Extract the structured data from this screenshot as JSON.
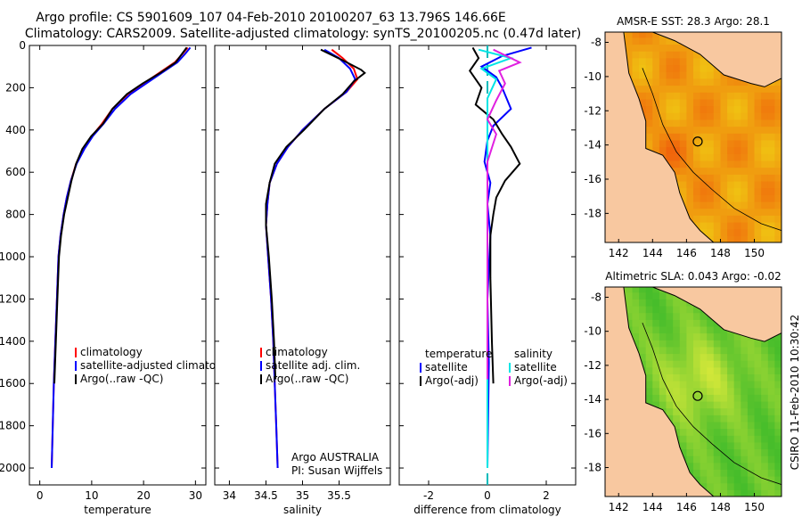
{
  "header": {
    "line1": "Argo profile: CS 5901609_107 04-Feb-2010 20100207_63 13.796S 146.66E",
    "line2": "Climatology: CARS2009. Satellite-adjusted climatology: synTS_20100205.nc (0.47d later)"
  },
  "side_label": "CSIRO 11-Feb-2010 10:30:42",
  "colors": {
    "climatology": "#ff0000",
    "satellite": "#0000ff",
    "argo": "#000000",
    "sal_satellite": "#00e5e5",
    "sal_argo": "#e020e0",
    "land": "#f8c8a0"
  },
  "chart_data": [
    {
      "type": "line",
      "xlabel": "temperature",
      "xticks": [
        0,
        10,
        20,
        30
      ],
      "xlim": [
        -2,
        32
      ],
      "ylim": [
        0,
        2080
      ],
      "yticks": [
        0,
        200,
        400,
        600,
        800,
        1000,
        1200,
        1400,
        1600,
        1800,
        2000
      ],
      "legend": [
        "climatology",
        "satellite-adjusted climatology",
        "Argo(..raw -QC)"
      ],
      "series": [
        {
          "name": "climatology",
          "color": "#ff0000",
          "points": [
            [
              28.5,
              10
            ],
            [
              27.5,
              40
            ],
            [
              26,
              80
            ],
            [
              23,
              130
            ],
            [
              20,
              180
            ],
            [
              17,
              230
            ],
            [
              14,
              300
            ],
            [
              12,
              370
            ],
            [
              10,
              430
            ],
            [
              8.5,
              490
            ],
            [
              7,
              560
            ],
            [
              6,
              640
            ],
            [
              5.2,
              720
            ],
            [
              4.6,
              800
            ],
            [
              4,
              900
            ],
            [
              3.6,
              1000
            ],
            [
              3.3,
              1200
            ],
            [
              3,
              1400
            ],
            [
              2.7,
              1600
            ],
            [
              2.5,
              1800
            ],
            [
              2.3,
              2000
            ]
          ]
        },
        {
          "name": "satellite-adjusted climatology",
          "color": "#0000ff",
          "points": [
            [
              29,
              10
            ],
            [
              28,
              40
            ],
            [
              26.5,
              80
            ],
            [
              23.5,
              130
            ],
            [
              20.5,
              180
            ],
            [
              17.5,
              230
            ],
            [
              14.5,
              300
            ],
            [
              12.3,
              370
            ],
            [
              10.2,
              430
            ],
            [
              8.6,
              490
            ],
            [
              7.1,
              560
            ],
            [
              6,
              640
            ],
            [
              5.2,
              720
            ],
            [
              4.6,
              800
            ],
            [
              4,
              900
            ],
            [
              3.6,
              1000
            ],
            [
              3.3,
              1200
            ],
            [
              3,
              1400
            ],
            [
              2.7,
              1600
            ],
            [
              2.5,
              1800
            ],
            [
              2.3,
              2000
            ]
          ]
        },
        {
          "name": "Argo(..raw -QC)",
          "color": "#000000",
          "points": [
            [
              28.3,
              10
            ],
            [
              27.4,
              40
            ],
            [
              26.2,
              80
            ],
            [
              23.2,
              130
            ],
            [
              19.8,
              180
            ],
            [
              16.8,
              230
            ],
            [
              14,
              300
            ],
            [
              12.2,
              370
            ],
            [
              9.9,
              430
            ],
            [
              8.2,
              490
            ],
            [
              7,
              560
            ],
            [
              6.1,
              640
            ],
            [
              5.4,
              720
            ],
            [
              4.7,
              800
            ],
            [
              4.1,
              900
            ],
            [
              3.7,
              1000
            ],
            [
              3.4,
              1200
            ],
            [
              3.1,
              1400
            ],
            [
              2.8,
              1600
            ]
          ]
        }
      ]
    },
    {
      "type": "line",
      "xlabel": "salinity",
      "xticks": [
        34,
        34.5,
        35,
        35.5
      ],
      "xlim": [
        33.8,
        36.2
      ],
      "ylim": [
        0,
        2080
      ],
      "legend": [
        "climatology",
        "satellite adj. clim.",
        "Argo(..raw -QC)"
      ],
      "annotation": [
        "Argo AUSTRALIA",
        "PI: Susan Wijffels"
      ],
      "series": [
        {
          "name": "climatology",
          "color": "#ff0000",
          "points": [
            [
              35.4,
              20
            ],
            [
              35.55,
              60
            ],
            [
              35.7,
              110
            ],
            [
              35.75,
              160
            ],
            [
              35.6,
              220
            ],
            [
              35.3,
              300
            ],
            [
              35,
              400
            ],
            [
              34.8,
              480
            ],
            [
              34.65,
              560
            ],
            [
              34.55,
              650
            ],
            [
              34.52,
              750
            ],
            [
              34.5,
              850
            ],
            [
              34.53,
              1000
            ],
            [
              34.57,
              1200
            ],
            [
              34.6,
              1400
            ],
            [
              34.62,
              1600
            ],
            [
              34.64,
              1800
            ],
            [
              34.66,
              2000
            ]
          ]
        },
        {
          "name": "satellite adj. clim.",
          "color": "#0000ff",
          "points": [
            [
              35.3,
              20
            ],
            [
              35.5,
              60
            ],
            [
              35.65,
              110
            ],
            [
              35.72,
              160
            ],
            [
              35.6,
              220
            ],
            [
              35.3,
              300
            ],
            [
              35,
              400
            ],
            [
              34.8,
              480
            ],
            [
              34.65,
              560
            ],
            [
              34.55,
              650
            ],
            [
              34.52,
              750
            ],
            [
              34.5,
              850
            ],
            [
              34.53,
              1000
            ],
            [
              34.57,
              1200
            ],
            [
              34.6,
              1400
            ],
            [
              34.62,
              1600
            ],
            [
              34.64,
              1800
            ],
            [
              34.66,
              2000
            ]
          ]
        },
        {
          "name": "Argo(..raw -QC)",
          "color": "#000000",
          "points": [
            [
              35.25,
              20
            ],
            [
              35.55,
              70
            ],
            [
              35.8,
              115
            ],
            [
              35.85,
              130
            ],
            [
              35.7,
              170
            ],
            [
              35.55,
              230
            ],
            [
              35.3,
              300
            ],
            [
              35.02,
              400
            ],
            [
              34.78,
              480
            ],
            [
              34.62,
              560
            ],
            [
              34.55,
              650
            ],
            [
              34.5,
              750
            ],
            [
              34.5,
              850
            ],
            [
              34.54,
              1000
            ],
            [
              34.58,
              1200
            ],
            [
              34.61,
              1400
            ],
            [
              34.63,
              1580
            ]
          ]
        }
      ]
    },
    {
      "type": "line",
      "xlabel": "difference from climatology",
      "xticks": [
        -2,
        0,
        2
      ],
      "xlim": [
        -3,
        3
      ],
      "ylim": [
        0,
        2080
      ],
      "legend_left": [
        "temperature",
        "satellite",
        "Argo(-adj)"
      ],
      "legend_right": [
        "salinity",
        "satellite",
        "Argo(-adj)"
      ],
      "series": [
        {
          "name": "temperature satellite",
          "color": "#0000ff",
          "points": [
            [
              1.5,
              10
            ],
            [
              0.5,
              50
            ],
            [
              -0.2,
              100
            ],
            [
              0.3,
              150
            ],
            [
              0.5,
              200
            ],
            [
              0.8,
              300
            ],
            [
              0.2,
              380
            ],
            [
              0,
              450
            ],
            [
              -0.1,
              550
            ],
            [
              0.1,
              650
            ],
            [
              0,
              750
            ],
            [
              0.1,
              900
            ],
            [
              0,
              1200
            ],
            [
              0.05,
              1500
            ],
            [
              0,
              2000
            ]
          ]
        },
        {
          "name": "temperature Argo(-adj)",
          "color": "#000000",
          "points": [
            [
              -0.5,
              10
            ],
            [
              -0.3,
              60
            ],
            [
              -0.6,
              120
            ],
            [
              -0.2,
              200
            ],
            [
              -0.4,
              280
            ],
            [
              0.2,
              350
            ],
            [
              0.5,
              420
            ],
            [
              0.8,
              480
            ],
            [
              1.1,
              560
            ],
            [
              0.6,
              640
            ],
            [
              0.3,
              720
            ],
            [
              0.2,
              800
            ],
            [
              0.1,
              900
            ],
            [
              0.1,
              1100
            ],
            [
              0.15,
              1400
            ],
            [
              0.2,
              1600
            ]
          ]
        },
        {
          "name": "salinity satellite",
          "color": "#00e5e5",
          "points": [
            [
              -0.3,
              20
            ],
            [
              0.8,
              60
            ],
            [
              -0.2,
              110
            ],
            [
              0.3,
              160
            ],
            [
              0,
              250
            ],
            [
              0,
              400
            ],
            [
              0,
              600
            ],
            [
              0,
              800
            ],
            [
              0,
              1200
            ],
            [
              0,
              1600
            ],
            [
              0,
              2000
            ]
          ]
        },
        {
          "name": "salinity Argo(-adj)",
          "color": "#e020e0",
          "points": [
            [
              0.2,
              20
            ],
            [
              1.1,
              80
            ],
            [
              0.4,
              120
            ],
            [
              0.6,
              180
            ],
            [
              0.3,
              260
            ],
            [
              0,
              350
            ],
            [
              0.3,
              420
            ],
            [
              0,
              550
            ],
            [
              0,
              800
            ],
            [
              0,
              1200
            ],
            [
              0,
              1580
            ]
          ]
        }
      ]
    },
    {
      "type": "heatmap",
      "title": "AMSR-E SST: 28.3 Argo: 28.1",
      "xticks": [
        142,
        144,
        146,
        148,
        150
      ],
      "yticks": [
        -8,
        -10,
        -12,
        -14,
        -16,
        -18
      ],
      "xlim": [
        141.2,
        151.6
      ],
      "ylim": [
        -19.7,
        -7.4
      ],
      "marker": [
        146.66,
        -13.796
      ]
    },
    {
      "type": "heatmap",
      "title": "Altimetric SLA: 0.043 Argo: -0.02",
      "xticks": [
        142,
        144,
        146,
        148,
        150
      ],
      "yticks": [
        -8,
        -10,
        -12,
        -14,
        -16,
        -18
      ],
      "xlim": [
        141.2,
        151.6
      ],
      "ylim": [
        -19.7,
        -7.4
      ],
      "marker": [
        146.66,
        -13.796
      ]
    }
  ]
}
